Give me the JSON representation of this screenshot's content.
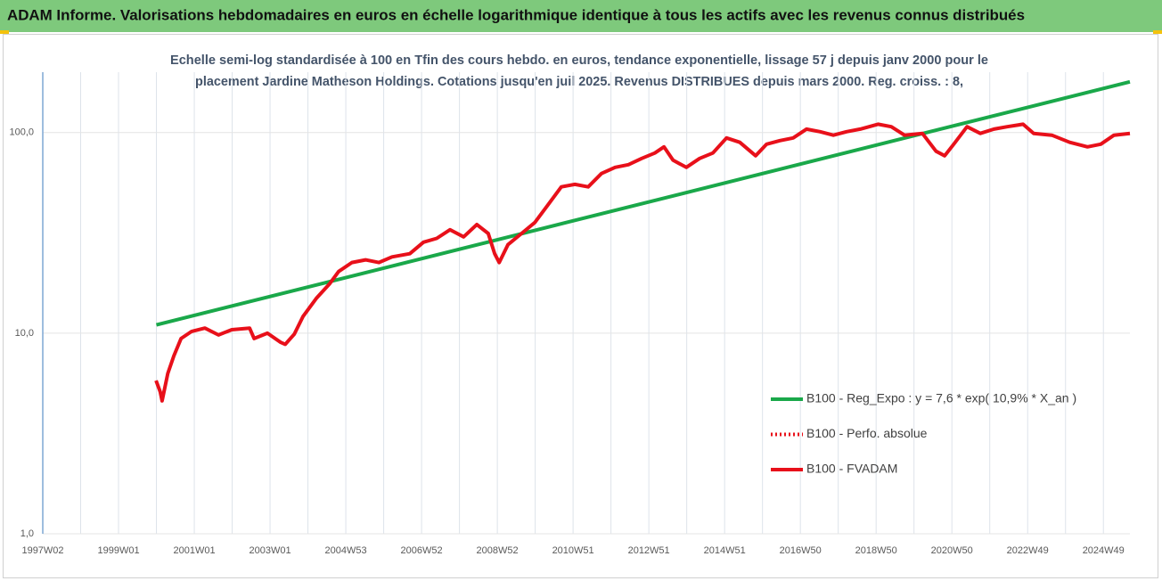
{
  "chart_data": {
    "type": "line",
    "title": "ADAM Informe. Valorisations hebdomadaires en euros en échelle logarithmique identique à tous les actifs avec les revenus connus distribués",
    "subtitle": [
      "Echelle semi-log standardisée à 100 en Tfin des cours hebdo. en euros, tendance exponentielle, lissage 57 j depuis janv 2000 pour le",
      "placement Jardine Matheson Holdings. Cotations jusqu'en juil 2025. Revenus DISTRIBUES depuis mars 2000. Reg. croiss. : 8,"
    ],
    "log_y": true,
    "grid": true,
    "legend_position": "right",
    "xlim": [
      1997,
      2025.7
    ],
    "xticks": [
      {
        "value": 1997,
        "label": "1997W02"
      },
      {
        "value": 1999,
        "label": "1999W01"
      },
      {
        "value": 2001,
        "label": "2001W01"
      },
      {
        "value": 2003,
        "label": "2003W01"
      },
      {
        "value": 2005,
        "label": "2004W53"
      },
      {
        "value": 2007,
        "label": "2006W52"
      },
      {
        "value": 2009,
        "label": "2008W52"
      },
      {
        "value": 2011,
        "label": "2010W51"
      },
      {
        "value": 2013,
        "label": "2012W51"
      },
      {
        "value": 2015,
        "label": "2014W51"
      },
      {
        "value": 2017,
        "label": "2016W50"
      },
      {
        "value": 2019,
        "label": "2018W50"
      },
      {
        "value": 2021,
        "label": "2020W50"
      },
      {
        "value": 2023,
        "label": "2022W49"
      },
      {
        "value": 2025,
        "label": "2024W49"
      }
    ],
    "ylim": [
      1,
      200
    ],
    "yticks": [
      {
        "value": 1,
        "label": "1,0"
      },
      {
        "value": 10,
        "label": "10,0"
      },
      {
        "value": 100,
        "label": "100,0"
      }
    ],
    "series": [
      {
        "name": "B100 - Reg_Expo : y = 7,6 * exp( 10,9% *  X_an )",
        "color": "#1aa84a",
        "dash": "solid",
        "x": [
          2000.0,
          2025.7
        ],
        "values": [
          11.0,
          179
        ]
      },
      {
        "name": "B100 - Perfo. absolue",
        "color": "#e8101a",
        "dash": "dotted",
        "x": [],
        "values": []
      },
      {
        "name": "B100 - FVADAM",
        "color": "#e8101a",
        "dash": "solid",
        "x": [
          1999.99,
          2000.1,
          2000.15,
          2000.3,
          2000.46,
          2000.65,
          2000.93,
          2001.28,
          2001.64,
          2001.99,
          2002.46,
          2002.58,
          2002.93,
          2003.28,
          2003.4,
          2003.64,
          2003.87,
          2004.22,
          2004.58,
          2004.81,
          2005.16,
          2005.52,
          2005.87,
          2006.22,
          2006.69,
          2007.05,
          2007.4,
          2007.75,
          2008.11,
          2008.46,
          2008.76,
          2008.93,
          2009.05,
          2009.28,
          2009.64,
          2009.99,
          2010.34,
          2010.69,
          2011.05,
          2011.4,
          2011.75,
          2012.11,
          2012.46,
          2012.81,
          2013.16,
          2013.4,
          2013.64,
          2013.99,
          2014.34,
          2014.69,
          2015.05,
          2015.4,
          2015.82,
          2016.11,
          2016.46,
          2016.81,
          2017.16,
          2017.52,
          2017.87,
          2018.22,
          2018.58,
          2019.05,
          2019.4,
          2019.75,
          2020.22,
          2020.58,
          2020.81,
          2021.05,
          2021.4,
          2021.75,
          2022.11,
          2022.46,
          2022.88,
          2023.16,
          2023.64,
          2024.11,
          2024.58,
          2024.93,
          2025.28,
          2025.7
        ],
        "values": [
          5.8,
          5.1,
          4.6,
          6.3,
          7.7,
          9.4,
          10.2,
          10.6,
          9.8,
          10.4,
          10.6,
          9.4,
          10,
          9.0,
          8.8,
          9.9,
          12.1,
          14.9,
          17.7,
          20.3,
          22.5,
          23.2,
          22.5,
          24.0,
          24.9,
          28.4,
          29.7,
          32.8,
          30.2,
          34.8,
          31.4,
          24.9,
          22.5,
          27.6,
          31.4,
          35.6,
          43.7,
          53.6,
          55.2,
          53.6,
          62.5,
          67.1,
          69.2,
          74.3,
          79.1,
          84.9,
          72.8,
          67.1,
          74.3,
          79.1,
          94.0,
          89.4,
          76.6,
          87.5,
          91.2,
          94,
          104,
          101,
          97,
          101,
          104,
          110,
          107,
          97,
          99,
          80.7,
          76.6,
          87.5,
          107,
          99,
          104,
          107,
          110,
          99,
          97,
          89.4,
          84.9,
          87.5,
          97,
          99
        ]
      }
    ]
  }
}
